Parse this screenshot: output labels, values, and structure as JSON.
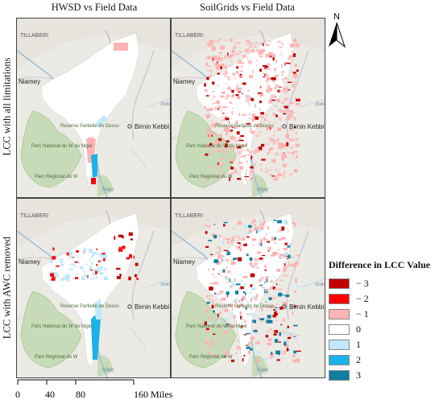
{
  "columns": [
    "HWSD vs Field Data",
    "SoilGrids vs Field Data"
  ],
  "rows": [
    "LCC with all limitations",
    "LCC with AWC removed"
  ],
  "panels": [
    {
      "id": "p11"
    },
    {
      "id": "p12"
    },
    {
      "id": "p21"
    },
    {
      "id": "p22"
    }
  ],
  "map_labels": {
    "region": "TILLABERI",
    "city1": "Niamey",
    "city2": "Birnin Kebbi",
    "reserve": "Reserve Partielle de Dosso",
    "park1": "Parc National du W du Niger",
    "park2": "Parc Régional du W",
    "river": "Niger",
    "soko": "Soko"
  },
  "north_arrow": "N",
  "legend": {
    "title": "Difference in LCC Value",
    "items": [
      {
        "label": "− 3",
        "color": "#c00000"
      },
      {
        "label": "− 2",
        "color": "#ff0000"
      },
      {
        "label": "− 1",
        "color": "#ffb3b3"
      },
      {
        "label": "0",
        "color": "#ffffff"
      },
      {
        "label": "1",
        "color": "#bfe9fb"
      },
      {
        "label": "2",
        "color": "#1cb2e8"
      },
      {
        "label": "3",
        "color": "#0f7fa0"
      }
    ]
  },
  "scale_bar": {
    "ticks": [
      "0",
      "40",
      "80",
      "160 Miles"
    ]
  }
}
